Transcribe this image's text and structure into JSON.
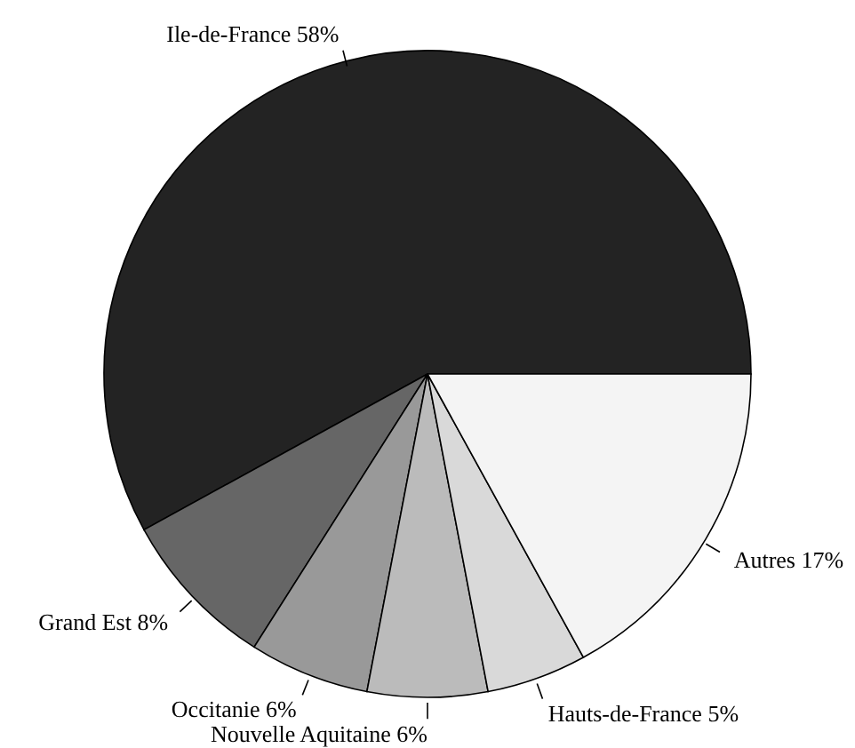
{
  "chart_data": {
    "type": "pie",
    "categories": [
      "Ile-de-France",
      "Grand Est",
      "Occitanie",
      "Nouvelle Aquitaine",
      "Hauts-de-France",
      "Autres"
    ],
    "values": [
      58,
      8,
      6,
      6,
      5,
      17
    ],
    "value_labels": [
      "58%",
      "8%",
      "6%",
      "6%",
      "5%",
      "17%"
    ],
    "colors": [
      "#232323",
      "#666666",
      "#999999",
      "#bbbbbb",
      "#d9d9d9",
      "#f4f4f4"
    ]
  }
}
